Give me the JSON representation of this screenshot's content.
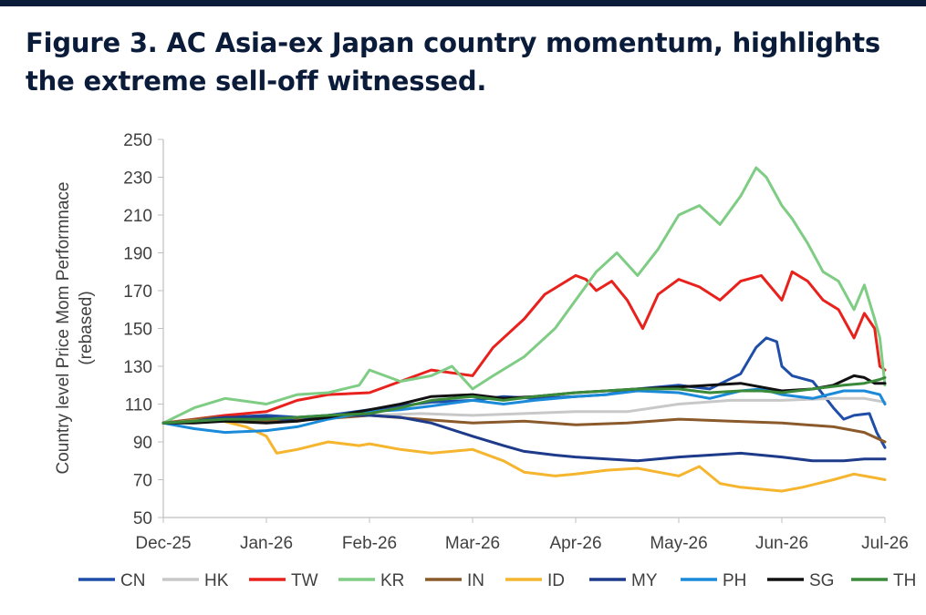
{
  "title": "Figure 3. AC Asia-ex Japan country momentum, highlights the extreme sell-off witnessed.",
  "chart_data": {
    "type": "line",
    "ylabel": "Country level Price Mom Performnace (rebased)",
    "ylabel_line1": "Country level Price Mom Performnace",
    "ylabel_line2": "(rebased)",
    "xlabel": "",
    "ylim": [
      50,
      250
    ],
    "yticks": [
      50,
      70,
      90,
      110,
      130,
      150,
      170,
      190,
      210,
      230,
      250
    ],
    "x_ticks": [
      "Dec-25",
      "Jan-26",
      "Feb-26",
      "Mar-26",
      "Apr-26",
      "May-26",
      "Jun-26",
      "Jul-26"
    ],
    "x_range": [
      0,
      7
    ],
    "grid": false,
    "legend_position": "bottom",
    "series": [
      {
        "name": "CN",
        "color": "#1f4ea8",
        "x": [
          0,
          0.3,
          0.6,
          1,
          1.3,
          1.6,
          2,
          2.3,
          2.6,
          3,
          3.3,
          3.6,
          4,
          4.3,
          4.6,
          5,
          5.3,
          5.6,
          5.75,
          5.85,
          5.95,
          6,
          6.1,
          6.3,
          6.5,
          6.6,
          6.7,
          6.85,
          6.92,
          7
        ],
        "y": [
          100,
          101,
          103,
          104,
          103,
          104,
          107,
          109,
          111,
          112,
          114,
          113,
          114,
          115,
          118,
          120,
          118,
          126,
          140,
          145,
          143,
          130,
          125,
          122,
          108,
          102,
          104,
          105,
          95,
          87
        ]
      },
      {
        "name": "HK",
        "color": "#c8c8c8",
        "x": [
          0,
          0.5,
          1,
          1.5,
          2,
          2.5,
          3,
          3.5,
          4,
          4.5,
          5,
          5.5,
          6,
          6.5,
          6.8,
          7
        ],
        "y": [
          100,
          101,
          102,
          103,
          104,
          105,
          104,
          105,
          106,
          106,
          110,
          112,
          112,
          113,
          113,
          111
        ]
      },
      {
        "name": "TW",
        "color": "#e8211c",
        "x": [
          0,
          0.3,
          0.6,
          1,
          1.3,
          1.6,
          2,
          2.3,
          2.6,
          3,
          3.2,
          3.5,
          3.7,
          4,
          4.1,
          4.2,
          4.35,
          4.5,
          4.65,
          4.8,
          5,
          5.2,
          5.4,
          5.6,
          5.8,
          6,
          6.1,
          6.25,
          6.4,
          6.55,
          6.7,
          6.8,
          6.9,
          6.95,
          7
        ],
        "y": [
          100,
          102,
          104,
          106,
          112,
          115,
          116,
          122,
          128,
          125,
          140,
          155,
          168,
          178,
          176,
          170,
          175,
          165,
          150,
          168,
          176,
          172,
          165,
          175,
          178,
          165,
          180,
          175,
          165,
          160,
          145,
          158,
          150,
          130,
          128
        ]
      },
      {
        "name": "KR",
        "color": "#7fcc84",
        "x": [
          0,
          0.3,
          0.6,
          1,
          1.3,
          1.6,
          1.9,
          2,
          2.3,
          2.6,
          2.8,
          3,
          3.2,
          3.5,
          3.8,
          4,
          4.2,
          4.4,
          4.6,
          4.8,
          5,
          5.2,
          5.4,
          5.6,
          5.75,
          5.85,
          6,
          6.1,
          6.25,
          6.4,
          6.55,
          6.7,
          6.8,
          6.9,
          6.95,
          7
        ],
        "y": [
          100,
          108,
          113,
          110,
          115,
          116,
          120,
          128,
          122,
          125,
          130,
          118,
          125,
          135,
          150,
          165,
          180,
          190,
          178,
          192,
          210,
          215,
          205,
          220,
          235,
          230,
          215,
          208,
          195,
          180,
          175,
          160,
          173,
          155,
          145,
          120
        ]
      },
      {
        "name": "IN",
        "color": "#8b5a2b",
        "x": [
          0,
          0.5,
          1,
          1.5,
          2,
          2.5,
          3,
          3.5,
          4,
          4.5,
          5,
          5.5,
          6,
          6.5,
          6.8,
          7
        ],
        "y": [
          100,
          103,
          101,
          102,
          104,
          102,
          100,
          101,
          99,
          100,
          102,
          101,
          100,
          98,
          95,
          90
        ]
      },
      {
        "name": "ID",
        "color": "#f5b52e",
        "x": [
          0,
          0.5,
          0.8,
          1,
          1.1,
          1.3,
          1.6,
          1.9,
          2,
          2.3,
          2.6,
          3,
          3.3,
          3.5,
          3.8,
          4,
          4.3,
          4.6,
          4.8,
          5,
          5.2,
          5.4,
          5.6,
          5.8,
          6,
          6.2,
          6.5,
          6.7,
          6.8,
          6.9,
          7
        ],
        "y": [
          100,
          102,
          98,
          93,
          84,
          86,
          90,
          88,
          89,
          86,
          84,
          86,
          80,
          74,
          72,
          73,
          75,
          76,
          74,
          72,
          77,
          68,
          66,
          65,
          64,
          66,
          70,
          73,
          72,
          71,
          70
        ]
      },
      {
        "name": "MY",
        "color": "#1e3a8a",
        "x": [
          0,
          0.3,
          0.6,
          1,
          1.3,
          1.6,
          2,
          2.3,
          2.6,
          3,
          3.3,
          3.5,
          3.8,
          4,
          4.3,
          4.6,
          5,
          5.3,
          5.6,
          5.8,
          6,
          6.3,
          6.6,
          6.8,
          7
        ],
        "y": [
          100,
          101,
          103,
          103,
          101,
          104,
          104,
          103,
          100,
          93,
          88,
          85,
          83,
          82,
          81,
          80,
          82,
          83,
          84,
          83,
          82,
          80,
          80,
          81,
          81
        ]
      },
      {
        "name": "PH",
        "color": "#1a8ad9",
        "x": [
          0,
          0.3,
          0.6,
          1,
          1.3,
          1.6,
          2,
          2.3,
          2.6,
          3,
          3.3,
          3.6,
          4,
          4.3,
          4.6,
          5,
          5.3,
          5.6,
          5.8,
          6,
          6.3,
          6.6,
          6.8,
          6.95,
          7
        ],
        "y": [
          100,
          97,
          95,
          96,
          98,
          102,
          106,
          107,
          109,
          112,
          110,
          112,
          114,
          115,
          117,
          116,
          113,
          117,
          118,
          115,
          113,
          117,
          117,
          115,
          110
        ]
      },
      {
        "name": "SG",
        "color": "#111111",
        "x": [
          0,
          0.3,
          0.6,
          1,
          1.3,
          1.6,
          2,
          2.3,
          2.6,
          3,
          3.3,
          3.6,
          4,
          4.3,
          4.6,
          5,
          5.3,
          5.6,
          5.8,
          6,
          6.3,
          6.5,
          6.7,
          6.8,
          6.9,
          7
        ],
        "y": [
          100,
          100,
          101,
          100,
          101,
          103,
          107,
          110,
          114,
          115,
          113,
          114,
          116,
          117,
          118,
          119,
          120,
          121,
          119,
          117,
          118,
          120,
          125,
          124,
          121,
          121
        ]
      },
      {
        "name": "TH",
        "color": "#3a8a3a",
        "x": [
          0,
          0.3,
          0.6,
          1,
          1.3,
          1.6,
          2,
          2.3,
          2.6,
          3,
          3.3,
          3.6,
          4,
          4.3,
          4.6,
          5,
          5.3,
          5.6,
          5.8,
          6,
          6.3,
          6.6,
          6.8,
          6.95,
          7
        ],
        "y": [
          100,
          101,
          102,
          102,
          103,
          104,
          105,
          108,
          112,
          114,
          112,
          114,
          116,
          117,
          118,
          118,
          116,
          117,
          117,
          116,
          118,
          120,
          121,
          123,
          124
        ]
      }
    ]
  }
}
